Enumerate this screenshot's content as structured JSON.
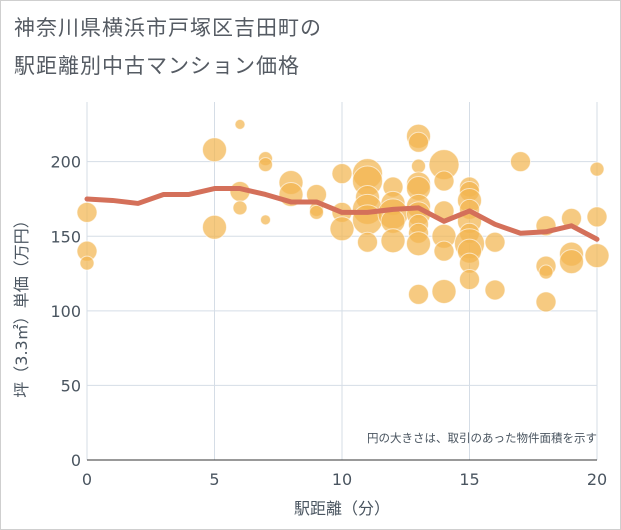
{
  "title_line1": "神奈川県横浜市戸塚区吉田町の",
  "title_line2": "駅距離別中古マンション価格",
  "chart_data": {
    "type": "scatter",
    "xlabel": "駅距離（分）",
    "ylabel": "坪（3.3㎡）単価（万円）",
    "xlim": [
      0,
      20
    ],
    "ylim": [
      0,
      240
    ],
    "x_ticks": [
      0,
      5,
      10,
      15,
      20
    ],
    "y_ticks": [
      0,
      50,
      100,
      150,
      200
    ],
    "grid": true,
    "note": "円の大きさは、取引のあった物件面積を示す",
    "colors": {
      "bubble": "#f2b550",
      "line": "#d4705a",
      "grid": "#d5dde6",
      "background": "#ffffff"
    },
    "points": [
      {
        "x": 0,
        "y": 166,
        "s": 2
      },
      {
        "x": 0,
        "y": 140,
        "s": 2
      },
      {
        "x": 0,
        "y": 132,
        "s": 1
      },
      {
        "x": 5,
        "y": 208,
        "s": 3
      },
      {
        "x": 5,
        "y": 156,
        "s": 3
      },
      {
        "x": 6,
        "y": 225,
        "s": 0
      },
      {
        "x": 6,
        "y": 180,
        "s": 2
      },
      {
        "x": 6,
        "y": 169,
        "s": 1
      },
      {
        "x": 7,
        "y": 202,
        "s": 1
      },
      {
        "x": 7,
        "y": 198,
        "s": 1
      },
      {
        "x": 7,
        "y": 161,
        "s": 0
      },
      {
        "x": 8,
        "y": 186,
        "s": 3
      },
      {
        "x": 8,
        "y": 178,
        "s": 3
      },
      {
        "x": 9,
        "y": 178,
        "s": 2
      },
      {
        "x": 9,
        "y": 168,
        "s": 1
      },
      {
        "x": 9,
        "y": 166,
        "s": 1
      },
      {
        "x": 10,
        "y": 192,
        "s": 2
      },
      {
        "x": 10,
        "y": 166,
        "s": 2
      },
      {
        "x": 10,
        "y": 155,
        "s": 3
      },
      {
        "x": 11,
        "y": 192,
        "s": 4
      },
      {
        "x": 11,
        "y": 187,
        "s": 4
      },
      {
        "x": 11,
        "y": 176,
        "s": 3
      },
      {
        "x": 11,
        "y": 168,
        "s": 4
      },
      {
        "x": 11,
        "y": 161,
        "s": 4
      },
      {
        "x": 11,
        "y": 146,
        "s": 2
      },
      {
        "x": 12,
        "y": 183,
        "s": 2
      },
      {
        "x": 12,
        "y": 172,
        "s": 3
      },
      {
        "x": 12,
        "y": 165,
        "s": 4
      },
      {
        "x": 12,
        "y": 160,
        "s": 3
      },
      {
        "x": 12,
        "y": 147,
        "s": 3
      },
      {
        "x": 13,
        "y": 217,
        "s": 3
      },
      {
        "x": 13,
        "y": 213,
        "s": 2
      },
      {
        "x": 13,
        "y": 197,
        "s": 1
      },
      {
        "x": 13,
        "y": 185,
        "s": 3
      },
      {
        "x": 13,
        "y": 182,
        "s": 3
      },
      {
        "x": 13,
        "y": 170,
        "s": 3
      },
      {
        "x": 13,
        "y": 165,
        "s": 3
      },
      {
        "x": 13,
        "y": 158,
        "s": 2
      },
      {
        "x": 13,
        "y": 152,
        "s": 2
      },
      {
        "x": 13,
        "y": 145,
        "s": 3
      },
      {
        "x": 13,
        "y": 111,
        "s": 2
      },
      {
        "x": 14,
        "y": 198,
        "s": 4
      },
      {
        "x": 14,
        "y": 187,
        "s": 2
      },
      {
        "x": 14,
        "y": 167,
        "s": 2
      },
      {
        "x": 14,
        "y": 150,
        "s": 3
      },
      {
        "x": 14,
        "y": 140,
        "s": 2
      },
      {
        "x": 14,
        "y": 113,
        "s": 3
      },
      {
        "x": 15,
        "y": 183,
        "s": 2
      },
      {
        "x": 15,
        "y": 180,
        "s": 2
      },
      {
        "x": 15,
        "y": 174,
        "s": 3
      },
      {
        "x": 15,
        "y": 168,
        "s": 2
      },
      {
        "x": 15,
        "y": 160,
        "s": 3
      },
      {
        "x": 15,
        "y": 152,
        "s": 2
      },
      {
        "x": 15,
        "y": 145,
        "s": 4
      },
      {
        "x": 15,
        "y": 140,
        "s": 3
      },
      {
        "x": 15,
        "y": 132,
        "s": 2
      },
      {
        "x": 15,
        "y": 121,
        "s": 2
      },
      {
        "x": 16,
        "y": 146,
        "s": 2
      },
      {
        "x": 16,
        "y": 114,
        "s": 2
      },
      {
        "x": 17,
        "y": 200,
        "s": 2
      },
      {
        "x": 18,
        "y": 157,
        "s": 2
      },
      {
        "x": 18,
        "y": 130,
        "s": 2
      },
      {
        "x": 18,
        "y": 126,
        "s": 1
      },
      {
        "x": 18,
        "y": 106,
        "s": 2
      },
      {
        "x": 19,
        "y": 162,
        "s": 2
      },
      {
        "x": 19,
        "y": 138,
        "s": 3
      },
      {
        "x": 19,
        "y": 133,
        "s": 3
      },
      {
        "x": 20,
        "y": 195,
        "s": 1
      },
      {
        "x": 20,
        "y": 163,
        "s": 2
      },
      {
        "x": 20,
        "y": 137,
        "s": 3
      }
    ],
    "line": {
      "x": [
        0,
        1,
        2,
        3,
        4,
        5,
        6,
        7,
        8,
        9,
        10,
        11,
        12,
        13,
        14,
        15,
        16,
        17,
        18,
        19,
        20
      ],
      "y": [
        175,
        174,
        172,
        178,
        178,
        182,
        182,
        178,
        173,
        173,
        166,
        166,
        168,
        169,
        160,
        167,
        158,
        152,
        153,
        157,
        148
      ]
    }
  }
}
